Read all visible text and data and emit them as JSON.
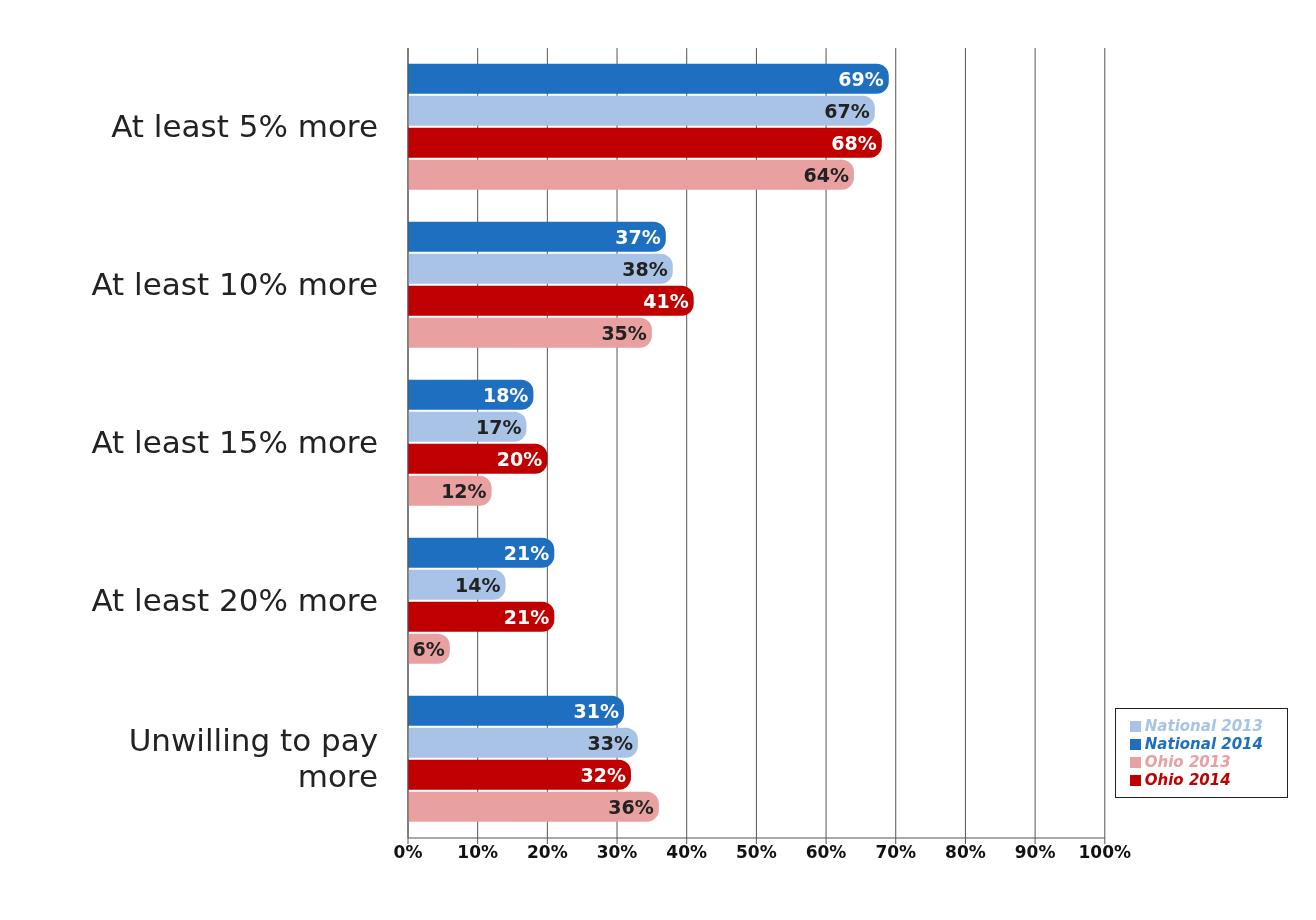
{
  "chart_data": {
    "type": "bar",
    "orientation": "horizontal",
    "categories": [
      "At least 5% more",
      "At least 10% more",
      "At least 15% more",
      "At least 20% more",
      "Unwilling to pay more"
    ],
    "series": [
      {
        "name": "National 2014",
        "color": "#1f6fc0",
        "values": [
          69,
          37,
          18,
          21,
          31
        ],
        "value_labels": [
          "69%",
          "37%",
          "18%",
          "21%",
          "31%"
        ]
      },
      {
        "name": "National 2013",
        "color": "#a9c3e6",
        "values": [
          67,
          38,
          17,
          14,
          33
        ],
        "value_labels": [
          "67%",
          "38%",
          "17%",
          "14%",
          "33%"
        ]
      },
      {
        "name": "Ohio 2014",
        "color": "#c00000",
        "values": [
          68,
          41,
          20,
          21,
          32
        ],
        "value_labels": [
          "68%",
          "41%",
          "20%",
          "21%",
          "32%"
        ]
      },
      {
        "name": "Ohio 2013",
        "color": "#e8a0a0",
        "values": [
          64,
          35,
          12,
          6,
          36
        ],
        "value_labels": [
          "64%",
          "35%",
          "12%",
          "6%",
          "36%"
        ]
      }
    ],
    "xlim": [
      0,
      100
    ],
    "xticks": [
      {
        "value": 0,
        "label": "0%"
      },
      {
        "value": 10,
        "label": "10%"
      },
      {
        "value": 20,
        "label": "20%"
      },
      {
        "value": 30,
        "label": "30%"
      },
      {
        "value": 40,
        "label": "40%"
      },
      {
        "value": 50,
        "label": "50%"
      },
      {
        "value": 60,
        "label": "60%"
      },
      {
        "value": 70,
        "label": "70%"
      },
      {
        "value": 80,
        "label": "80%"
      },
      {
        "value": 90,
        "label": "90%"
      },
      {
        "value": 100,
        "label": "100%"
      }
    ],
    "grid": "x",
    "legend": "bottom right"
  }
}
